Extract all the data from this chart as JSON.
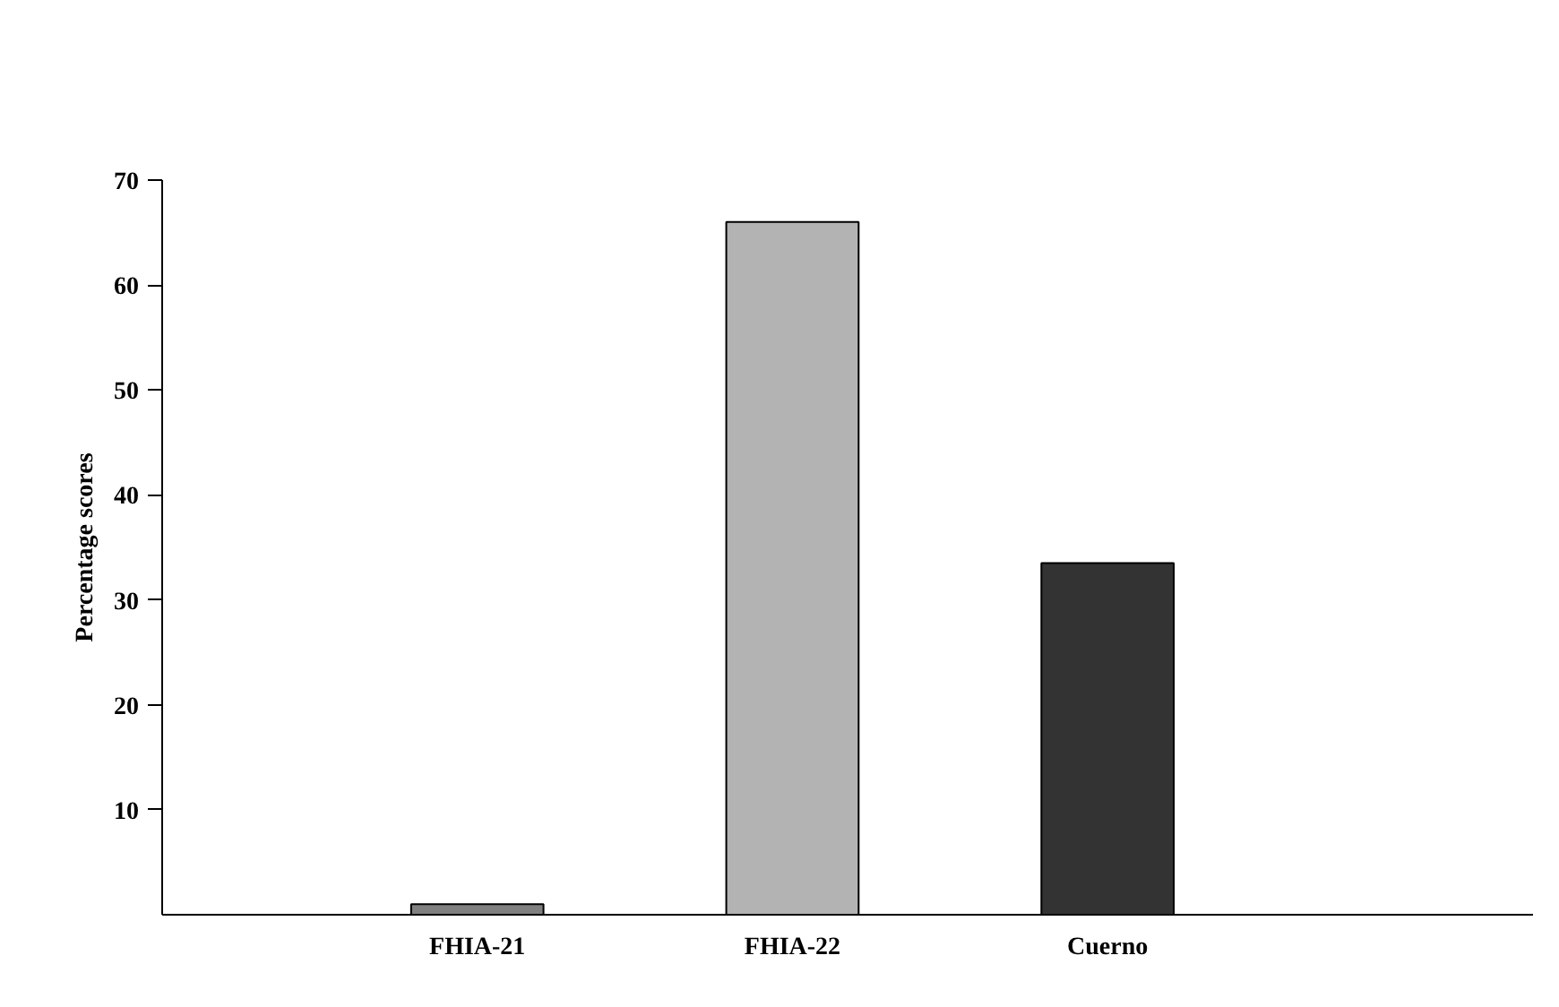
{
  "chart_data": {
    "type": "bar",
    "ylabel": "Percentage scores",
    "categories": [
      "FHIA-21",
      "FHIA-22",
      "Cuerno"
    ],
    "values": [
      1,
      66,
      33.5
    ],
    "colors": [
      "#808080",
      "#b3b3b3",
      "#333333"
    ],
    "ylim": [
      0,
      70
    ],
    "yticks": [
      10,
      20,
      30,
      40,
      50,
      60,
      70
    ],
    "grid": false
  }
}
